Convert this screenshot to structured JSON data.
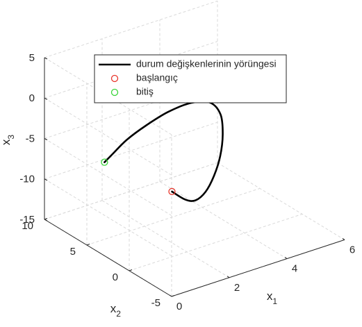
{
  "chart_data": {
    "type": "line",
    "projection": "3d",
    "title": "",
    "axes": {
      "x1": {
        "label": "x",
        "subscript": "1",
        "range": [
          0,
          6
        ],
        "ticks": [
          0,
          2,
          4,
          6
        ],
        "tick_labels": [
          "0",
          "2",
          "4",
          "6"
        ]
      },
      "x2": {
        "label": "x",
        "subscript": "2",
        "range": [
          -5,
          10
        ],
        "ticks": [
          -5,
          0,
          5,
          10
        ],
        "tick_labels": [
          "-5",
          "0",
          "5",
          "10"
        ]
      },
      "x3": {
        "label": "x",
        "subscript": "3",
        "range": [
          -15,
          5
        ],
        "ticks": [
          -15,
          -10,
          -5,
          0,
          5
        ],
        "tick_labels": [
          "-15",
          "-10",
          "-5",
          "0",
          "5"
        ]
      }
    },
    "grid": true,
    "box": "3d-grid",
    "series": [
      {
        "name": "durum değişkenlerinin yörüngesi",
        "kind": "line",
        "color": "#000000",
        "points": [
          {
            "x1": 0.6,
            "x2": -3.0,
            "x3": -4.0
          },
          {
            "x1": 1.2,
            "x2": -2.5,
            "x3": -6.0
          },
          {
            "x1": 2.0,
            "x2": -1.0,
            "x3": -8.0
          },
          {
            "x1": 3.0,
            "x2": 1.2,
            "x3": -9.5
          },
          {
            "x1": 4.0,
            "x2": 3.6,
            "x3": -10.2
          },
          {
            "x1": 4.8,
            "x2": 5.6,
            "x3": -10.0
          },
          {
            "x1": 5.3,
            "x2": 7.0,
            "x3": -8.8
          },
          {
            "x1": 5.4,
            "x2": 7.6,
            "x3": -6.8
          },
          {
            "x1": 5.0,
            "x2": 7.5,
            "x3": -4.8
          },
          {
            "x1": 4.2,
            "x2": 7.0,
            "x3": -3.6
          },
          {
            "x1": 3.2,
            "x2": 6.3,
            "x3": -3.1
          },
          {
            "x1": 2.2,
            "x2": 5.5,
            "x3": -3.1
          },
          {
            "x1": 1.3,
            "x2": 4.7,
            "x3": -3.3
          },
          {
            "x1": 0.6,
            "x2": 4.0,
            "x3": -3.8
          },
          {
            "x1": 0.2,
            "x2": 3.6,
            "x3": -4.1
          }
        ]
      },
      {
        "name": "başlangıç",
        "kind": "marker",
        "marker": "circle",
        "color": "#e8352b",
        "points": [
          {
            "x1": 0.6,
            "x2": -3.0,
            "x3": -4.0
          }
        ]
      },
      {
        "name": "bitiş",
        "kind": "marker",
        "marker": "circle",
        "color": "#38d438",
        "points": [
          {
            "x1": 0.2,
            "x2": 3.6,
            "x3": -4.1
          }
        ]
      }
    ],
    "legend": {
      "placement": "top-center",
      "entries": [
        {
          "label": "durum değişkenlerinin yörüngesi",
          "style": "line",
          "color": "#000000"
        },
        {
          "label": "başlangıç",
          "style": "circle",
          "color": "#e8352b"
        },
        {
          "label": "bitiş",
          "style": "circle",
          "color": "#38d438"
        }
      ]
    },
    "colors": {
      "axis": "#262626",
      "grid": "#d9d9d9",
      "text": "#262626",
      "background": "#ffffff"
    }
  }
}
